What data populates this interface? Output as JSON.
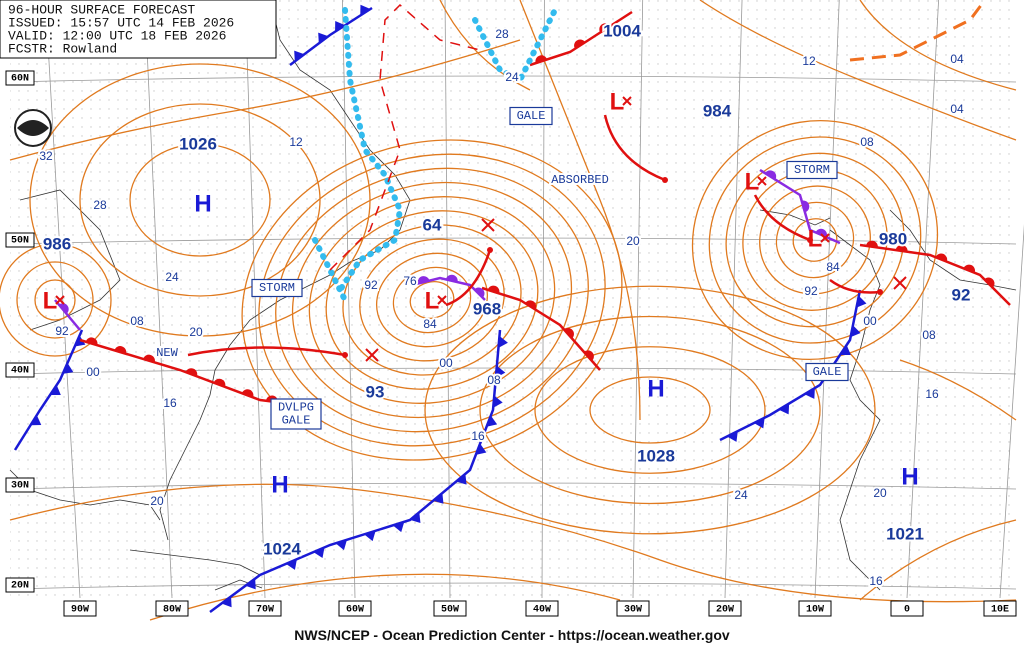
{
  "header": {
    "lines": [
      "96-HOUR SURFACE FORECAST",
      "ISSUED: 15:57 UTC 14 FEB 2026",
      "VALID:  12:00 UTC 18 FEB 2026",
      "FCSTR:  Rowland"
    ]
  },
  "map": {
    "lat_labels": [
      "60N",
      "50N",
      "40N",
      "30N",
      "20N"
    ],
    "lon_labels": [
      "90W",
      "80W",
      "70W",
      "60W",
      "50W",
      "40W",
      "30W",
      "20W",
      "10W",
      "0",
      "10E"
    ],
    "centers": [
      "H",
      "L",
      "L",
      "L",
      "L",
      "L",
      "H",
      "H",
      "H"
    ],
    "pressure_labels": [
      "1026",
      "986",
      "1004",
      "984",
      "64",
      "968",
      "980",
      "92",
      "93",
      "1028",
      "1021",
      "1024"
    ],
    "area_labels": [
      {
        "lines": [
          "GALE"
        ]
      },
      {
        "lines": [
          "STORM"
        ]
      },
      {
        "lines": [
          "STORM"
        ]
      },
      {
        "lines": [
          "GALE"
        ]
      },
      {
        "lines": [
          "DVLPG",
          "GALE"
        ]
      },
      {
        "lines": [
          "NEW"
        ]
      },
      {
        "lines": [
          "ABSORBED"
        ]
      }
    ],
    "isobar_labels": [
      "32",
      "28",
      "24",
      "20",
      "16",
      "08",
      "92",
      "00",
      "12",
      "92",
      "76",
      "84",
      "00",
      "08",
      "16",
      "20",
      "28",
      "24",
      "12",
      "04",
      "04",
      "08",
      "20",
      "84",
      "92",
      "00",
      "08",
      "16",
      "24",
      "20",
      "16"
    ]
  },
  "footer": "NWS/NCEP - Ocean Prediction Center - https://ocean.weather.gov"
}
